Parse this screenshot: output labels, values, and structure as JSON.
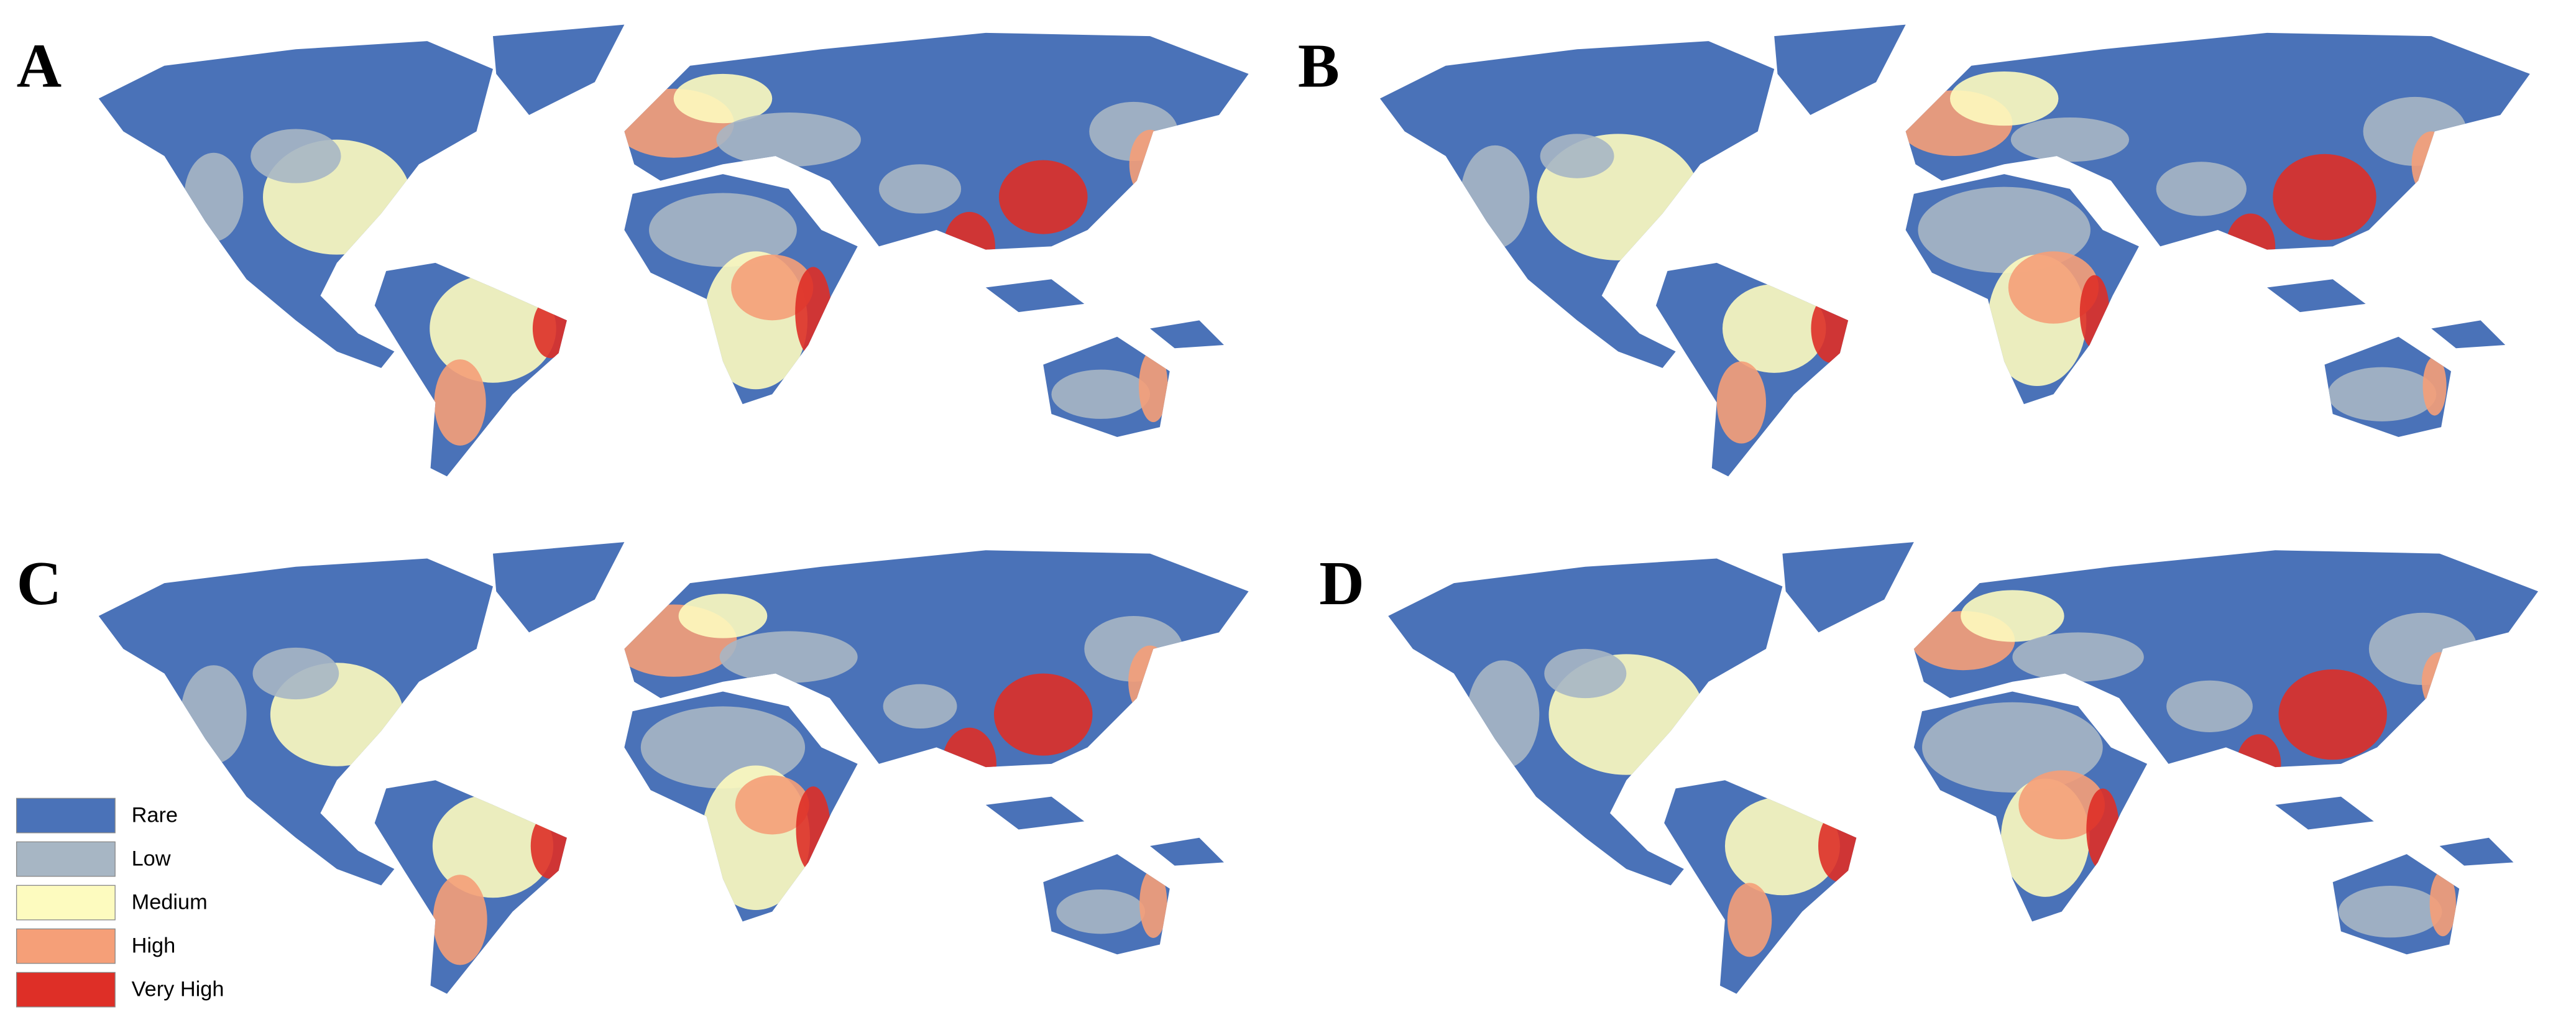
{
  "panels": [
    {
      "label": "A"
    },
    {
      "label": "B"
    },
    {
      "label": "C"
    },
    {
      "label": "D"
    }
  ],
  "legend": {
    "items": [
      {
        "name": "Rare",
        "color": "#4a72b8"
      },
      {
        "name": "Low",
        "color": "#a7b6c4"
      },
      {
        "name": "Medium",
        "color": "#fdfbbf"
      },
      {
        "name": "High",
        "color": "#f59f78"
      },
      {
        "name": "Very High",
        "color": "#de2f27"
      }
    ]
  }
}
